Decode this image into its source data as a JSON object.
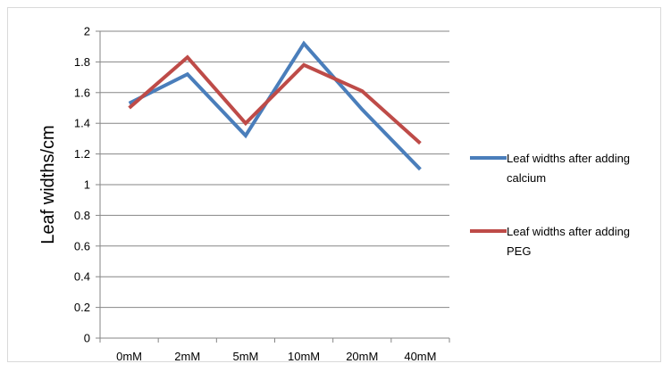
{
  "chart_data": {
    "type": "line",
    "title": "",
    "xlabel": "",
    "ylabel": "Leaf widths/cm",
    "categories": [
      "0mM",
      "2mM",
      "5mM",
      "10mM",
      "20mM",
      "40mM"
    ],
    "ylim": [
      0,
      2
    ],
    "yticks": [
      "0",
      "0.2",
      "0.4",
      "0.6",
      "0.8",
      "1",
      "1.2",
      "1.4",
      "1.6",
      "1.8",
      "2"
    ],
    "grid": true,
    "legend_position": "right",
    "series": [
      {
        "name": "Leaf widths after adding calcium",
        "legend_lines": [
          "Leaf widths after adding",
          "calcium"
        ],
        "color": "#4a7ebb",
        "values": [
          1.53,
          1.72,
          1.32,
          1.92,
          1.49,
          1.1
        ]
      },
      {
        "name": "Leaf widths after adding PEG",
        "legend_lines": [
          "Leaf widths after adding",
          "PEG"
        ],
        "color": "#be4b48",
        "values": [
          1.5,
          1.83,
          1.4,
          1.78,
          1.61,
          1.27
        ]
      }
    ]
  }
}
